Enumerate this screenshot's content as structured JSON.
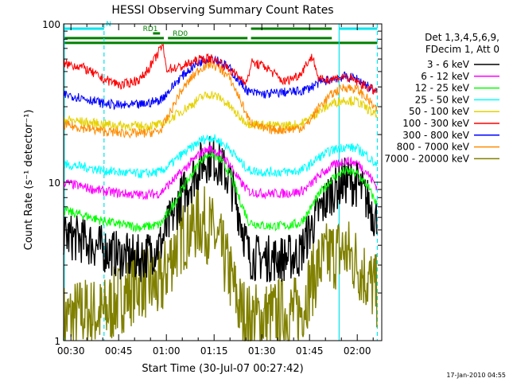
{
  "chart_data": {
    "type": "line",
    "title": "HESSI Observing Summary Count Rates",
    "xlabel": "Start Time (30-Jul-07 00:27:42)",
    "ylabel": "Count Rate (s⁻¹ detector⁻¹)",
    "yscale": "log",
    "ylim": [
      1,
      100
    ],
    "xlim_minutes": [
      27.7,
      127.7
    ],
    "y_ticks": [
      {
        "value": 1,
        "label": "1"
      },
      {
        "value": 10,
        "label": "10"
      },
      {
        "value": 100,
        "label": "100"
      }
    ],
    "x_ticks": [
      {
        "minute": 30,
        "label": "00:30"
      },
      {
        "minute": 45,
        "label": "00:45"
      },
      {
        "minute": 60,
        "label": "01:00"
      },
      {
        "minute": 75,
        "label": "01:15"
      },
      {
        "minute": 90,
        "label": "01:30"
      },
      {
        "minute": 105,
        "label": "01:45"
      },
      {
        "minute": 120,
        "label": "02:00"
      }
    ],
    "legend_header": [
      "Det 1,3,4,5,6,9,",
      "FDecim 1, Att 0"
    ],
    "legend_position": "right",
    "date_stamp": "17-Jan-2010 04:55",
    "flag_bars": [
      {
        "name": "N",
        "color": "#00e5ee",
        "level": 0.985,
        "segments": [
          [
            27.7,
            40.4
          ],
          [
            114.3,
            126.3
          ]
        ],
        "label": "N",
        "label_minute": 41.0
      },
      {
        "name": "RD1",
        "color": "#007f00",
        "level": 0.97,
        "segments": [
          [
            55.8,
            58.0
          ]
        ],
        "label": "RD1",
        "label_minute": 52.6
      },
      {
        "name": "RD0",
        "color": "#007f00",
        "level": 0.955,
        "segments": [
          [
            27.7,
            59.2
          ],
          [
            60.5,
            85.5
          ],
          [
            86.6,
            112.0
          ]
        ],
        "label": "RD0",
        "label_minute": 62.0
      },
      {
        "name": "green-top",
        "color": "#007f00",
        "level": 0.985,
        "segments": [
          [
            86.6,
            112.0
          ]
        ],
        "label": "",
        "label_minute": 0
      },
      {
        "name": "green-low",
        "color": "#007f00",
        "level": 0.94,
        "segments": [
          [
            27.7,
            126.3
          ]
        ],
        "label": "",
        "label_minute": 0
      }
    ],
    "vertical_markers": [
      {
        "minute": 27.9,
        "color": "#00e5ee",
        "style": "solid"
      },
      {
        "minute": 40.4,
        "color": "#00e5ee",
        "style": "dashed"
      },
      {
        "minute": 114.3,
        "color": "#00e5ee",
        "style": "solid"
      },
      {
        "minute": 126.3,
        "color": "#00e5ee",
        "style": "dashed"
      }
    ],
    "series": [
      {
        "name": "3 - 6 keV",
        "color": "#000000",
        "points": [
          [
            27.7,
            4.6
          ],
          [
            34,
            4.3
          ],
          [
            40,
            3.8
          ],
          [
            46,
            3.4
          ],
          [
            52,
            3.3
          ],
          [
            58,
            4.0
          ],
          [
            61,
            5.5
          ],
          [
            64,
            7.6
          ],
          [
            68,
            10.5
          ],
          [
            71,
            13.2
          ],
          [
            74,
            14.5
          ],
          [
            77,
            12.8
          ],
          [
            80,
            10.2
          ],
          [
            83,
            6.3
          ],
          [
            86,
            3.4
          ],
          [
            91,
            3.3
          ],
          [
            97,
            3.3
          ],
          [
            102,
            3.5
          ],
          [
            104.5,
            4.7
          ],
          [
            108,
            6.5
          ],
          [
            112,
            8.8
          ],
          [
            116,
            10.2
          ],
          [
            120,
            9.8
          ],
          [
            123,
            7.8
          ],
          [
            126.3,
            5.7
          ]
        ]
      },
      {
        "name": "6 - 12 keV",
        "color": "#ff00ff",
        "points": [
          [
            27.7,
            10.0
          ],
          [
            34,
            9.3
          ],
          [
            40,
            8.8
          ],
          [
            46,
            8.5
          ],
          [
            52,
            8.3
          ],
          [
            58,
            8.5
          ],
          [
            61,
            9.8
          ],
          [
            64,
            11.2
          ],
          [
            68,
            13.5
          ],
          [
            71,
            15.4
          ],
          [
            74,
            16.3
          ],
          [
            77,
            15.0
          ],
          [
            80,
            13.0
          ],
          [
            83,
            10.2
          ],
          [
            86,
            8.7
          ],
          [
            91,
            8.5
          ],
          [
            97,
            8.5
          ],
          [
            102,
            8.7
          ],
          [
            104.5,
            9.3
          ],
          [
            108,
            11.0
          ],
          [
            112,
            12.6
          ],
          [
            116,
            13.7
          ],
          [
            120,
            13.2
          ],
          [
            123,
            11.6
          ],
          [
            126.3,
            9.3
          ]
        ]
      },
      {
        "name": "12 - 25 keV",
        "color": "#00ff00",
        "points": [
          [
            27.7,
            6.6
          ],
          [
            34,
            6.2
          ],
          [
            40,
            5.7
          ],
          [
            46,
            5.4
          ],
          [
            52,
            5.2
          ],
          [
            58,
            5.4
          ],
          [
            61,
            6.6
          ],
          [
            64,
            8.4
          ],
          [
            68,
            11.2
          ],
          [
            71,
            14.0
          ],
          [
            74,
            15.3
          ],
          [
            77,
            13.9
          ],
          [
            80,
            11.3
          ],
          [
            83,
            7.8
          ],
          [
            86,
            5.6
          ],
          [
            91,
            5.3
          ],
          [
            97,
            5.3
          ],
          [
            102,
            5.5
          ],
          [
            104.5,
            6.4
          ],
          [
            108,
            8.4
          ],
          [
            112,
            10.5
          ],
          [
            116,
            11.8
          ],
          [
            120,
            11.3
          ],
          [
            123,
            9.6
          ],
          [
            126.3,
            7.2
          ]
        ]
      },
      {
        "name": "25 - 50 keV",
        "color": "#00ffff",
        "points": [
          [
            27.7,
            13.0
          ],
          [
            34,
            12.5
          ],
          [
            40,
            11.9
          ],
          [
            46,
            11.5
          ],
          [
            52,
            11.3
          ],
          [
            58,
            11.6
          ],
          [
            61,
            12.8
          ],
          [
            64,
            14.5
          ],
          [
            68,
            16.6
          ],
          [
            71,
            18.5
          ],
          [
            74,
            19.3
          ],
          [
            77,
            18.0
          ],
          [
            80,
            16.2
          ],
          [
            83,
            13.6
          ],
          [
            86,
            11.9
          ],
          [
            91,
            11.6
          ],
          [
            97,
            11.6
          ],
          [
            102,
            11.8
          ],
          [
            104.5,
            12.6
          ],
          [
            108,
            14.4
          ],
          [
            112,
            15.9
          ],
          [
            116,
            16.8
          ],
          [
            120,
            16.3
          ],
          [
            123,
            14.8
          ],
          [
            126.3,
            12.6
          ]
        ]
      },
      {
        "name": "50 - 100 keV",
        "color": "#e6d200",
        "points": [
          [
            27.7,
            25.0
          ],
          [
            34,
            24.0
          ],
          [
            40,
            23.3
          ],
          [
            46,
            22.8
          ],
          [
            52,
            22.6
          ],
          [
            58,
            23.0
          ],
          [
            61,
            25.0
          ],
          [
            64,
            27.5
          ],
          [
            68,
            31.0
          ],
          [
            71,
            34.5
          ],
          [
            74,
            36.0
          ],
          [
            77,
            34.0
          ],
          [
            80,
            30.0
          ],
          [
            83,
            25.8
          ],
          [
            86,
            23.5
          ],
          [
            91,
            22.8
          ],
          [
            97,
            22.8
          ],
          [
            102,
            23.2
          ],
          [
            104.5,
            24.8
          ],
          [
            108,
            28.0
          ],
          [
            112,
            31.5
          ],
          [
            116,
            33.2
          ],
          [
            120,
            32.3
          ],
          [
            123,
            29.3
          ],
          [
            126.3,
            26.0
          ]
        ]
      },
      {
        "name": "100 - 300 keV",
        "color": "#ff0000",
        "points": [
          [
            27.7,
            56.0
          ],
          [
            33,
            54.0
          ],
          [
            40,
            45.0
          ],
          [
            46,
            41.0
          ],
          [
            52,
            45.0
          ],
          [
            56,
            58.0
          ],
          [
            58.8,
            74.0
          ],
          [
            60,
            52.0
          ],
          [
            64,
            53.0
          ],
          [
            68,
            57.0
          ],
          [
            71,
            60.0
          ],
          [
            74,
            60.5
          ],
          [
            77,
            57.0
          ],
          [
            80,
            51.0
          ],
          [
            83,
            46.0
          ],
          [
            85.5,
            43.0
          ],
          [
            86.6,
            57.0
          ],
          [
            91,
            54.0
          ],
          [
            97,
            43.0
          ],
          [
            102,
            48.0
          ],
          [
            104.5,
            58.0
          ],
          [
            106,
            62.0
          ],
          [
            108,
            44.0
          ],
          [
            112,
            45.0
          ],
          [
            116,
            46.5
          ],
          [
            120,
            43.0
          ],
          [
            123,
            40.0
          ],
          [
            126.3,
            37.0
          ]
        ]
      },
      {
        "name": "300 - 800 keV",
        "color": "#0000ff",
        "points": [
          [
            27.7,
            36.0
          ],
          [
            34,
            34.0
          ],
          [
            40,
            31.5
          ],
          [
            46,
            30.5
          ],
          [
            52,
            30.8
          ],
          [
            58,
            33.0
          ],
          [
            61,
            38.0
          ],
          [
            64,
            45.0
          ],
          [
            68,
            53.0
          ],
          [
            71,
            58.0
          ],
          [
            74,
            62.0
          ],
          [
            77,
            58.0
          ],
          [
            80,
            52.0
          ],
          [
            83,
            43.0
          ],
          [
            86,
            37.0
          ],
          [
            91,
            36.0
          ],
          [
            97,
            37.0
          ],
          [
            102,
            37.5
          ],
          [
            104.5,
            39.0
          ],
          [
            108,
            42.5
          ],
          [
            112,
            45.0
          ],
          [
            116,
            46.5
          ],
          [
            120,
            45.0
          ],
          [
            123,
            41.0
          ],
          [
            126.3,
            37.0
          ]
        ]
      },
      {
        "name": "800 - 7000 keV",
        "color": "#ff8c00",
        "points": [
          [
            27.7,
            23.0
          ],
          [
            34,
            22.0
          ],
          [
            40,
            21.0
          ],
          [
            46,
            20.5
          ],
          [
            52,
            20.3
          ],
          [
            58,
            21.0
          ],
          [
            61,
            27.0
          ],
          [
            64,
            36.0
          ],
          [
            68,
            46.0
          ],
          [
            71,
            53.0
          ],
          [
            74,
            56.0
          ],
          [
            77,
            52.0
          ],
          [
            80,
            45.0
          ],
          [
            83,
            34.0
          ],
          [
            86,
            24.5
          ],
          [
            91,
            21.5
          ],
          [
            97,
            21.5
          ],
          [
            102,
            22.0
          ],
          [
            104.5,
            23.5
          ],
          [
            108,
            30.0
          ],
          [
            112,
            36.0
          ],
          [
            116,
            40.0
          ],
          [
            120,
            38.5
          ],
          [
            123,
            34.0
          ],
          [
            126.3,
            28.0
          ]
        ]
      },
      {
        "name": "7000 - 20000 keV",
        "color": "#808000",
        "points": [
          [
            27.7,
            1.35
          ],
          [
            34,
            1.5
          ],
          [
            40,
            1.45
          ],
          [
            46,
            1.9
          ],
          [
            52,
            2.4
          ],
          [
            58,
            2.1
          ],
          [
            61,
            3.2
          ],
          [
            64,
            4.3
          ],
          [
            68,
            5.3
          ],
          [
            71,
            5.7
          ],
          [
            74,
            5.0
          ],
          [
            77,
            3.8
          ],
          [
            80,
            2.6
          ],
          [
            83,
            1.6
          ],
          [
            86,
            1.35
          ],
          [
            91,
            1.4
          ],
          [
            97,
            1.5
          ],
          [
            102,
            1.5
          ],
          [
            104.5,
            2.1
          ],
          [
            108,
            3.0
          ],
          [
            112,
            3.5
          ],
          [
            116,
            3.7
          ],
          [
            120,
            3.1
          ],
          [
            123,
            2.5
          ],
          [
            126.3,
            2.0
          ]
        ]
      }
    ]
  }
}
